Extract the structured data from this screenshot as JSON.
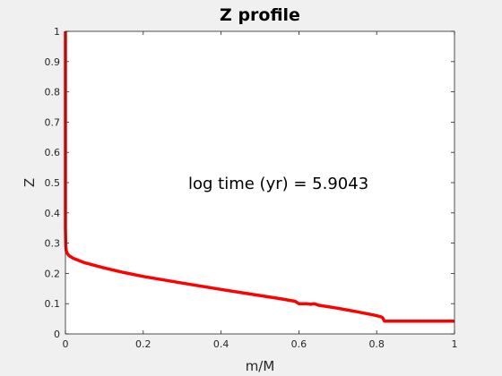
{
  "chart_data": {
    "type": "line",
    "title": "Z profile",
    "xlabel": "m/M",
    "ylabel": "Z",
    "xlim": [
      0,
      1
    ],
    "ylim": [
      0,
      1
    ],
    "xticks": [
      "0",
      "0.2",
      "0.4",
      "0.6",
      "0.8",
      "1"
    ],
    "yticks": [
      "0",
      "0.1",
      "0.2",
      "0.3",
      "0.4",
      "0.5",
      "0.6",
      "0.7",
      "0.8",
      "0.9",
      "1"
    ],
    "annotation": "log time (yr) = 5.9043",
    "grid": false,
    "line_color": "#ff0000",
    "series": [
      {
        "x": [
          0.0,
          0.0,
          0.001,
          0.002,
          0.005,
          0.01,
          0.02,
          0.05,
          0.1,
          0.15,
          0.2,
          0.3,
          0.4,
          0.5,
          0.55,
          0.59,
          0.6,
          0.62,
          0.63,
          0.64,
          0.65,
          0.7,
          0.75,
          0.79,
          0.8,
          0.81,
          0.815,
          0.82,
          0.85,
          0.9,
          1.0
        ],
        "y": [
          1.0,
          0.35,
          0.29,
          0.275,
          0.265,
          0.258,
          0.25,
          0.235,
          0.218,
          0.203,
          0.19,
          0.168,
          0.147,
          0.127,
          0.117,
          0.108,
          0.1,
          0.1,
          0.098,
          0.1,
          0.095,
          0.085,
          0.073,
          0.063,
          0.06,
          0.057,
          0.054,
          0.042,
          0.042,
          0.042,
          0.042
        ]
      }
    ]
  }
}
